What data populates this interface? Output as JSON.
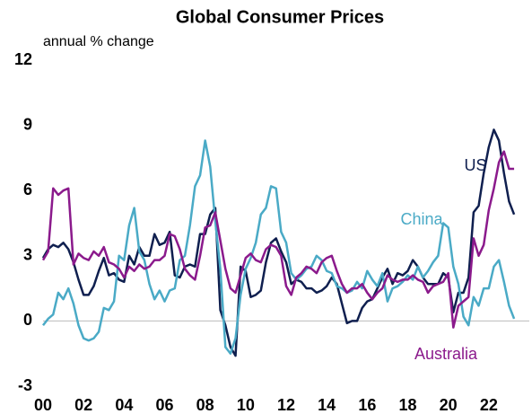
{
  "chart_data": {
    "type": "line",
    "title": "Global Consumer Prices",
    "y_label": "annual % change",
    "x": [
      2000,
      2000.25,
      2000.5,
      2000.75,
      2001,
      2001.25,
      2001.5,
      2001.75,
      2002,
      2002.25,
      2002.5,
      2002.75,
      2003,
      2003.25,
      2003.5,
      2003.75,
      2004,
      2004.25,
      2004.5,
      2004.75,
      2005,
      2005.25,
      2005.5,
      2005.75,
      2006,
      2006.25,
      2006.5,
      2006.75,
      2007,
      2007.25,
      2007.5,
      2007.75,
      2008,
      2008.25,
      2008.5,
      2008.75,
      2009,
      2009.25,
      2009.5,
      2009.75,
      2010,
      2010.25,
      2010.5,
      2010.75,
      2011,
      2011.25,
      2011.5,
      2011.75,
      2012,
      2012.25,
      2012.5,
      2012.75,
      2013,
      2013.25,
      2013.5,
      2013.75,
      2014,
      2014.25,
      2014.5,
      2014.75,
      2015,
      2015.25,
      2015.5,
      2015.75,
      2016,
      2016.25,
      2016.5,
      2016.75,
      2017,
      2017.25,
      2017.5,
      2017.75,
      2018,
      2018.25,
      2018.5,
      2018.75,
      2019,
      2019.25,
      2019.5,
      2019.75,
      2020,
      2020.25,
      2020.5,
      2020.75,
      2021,
      2021.25,
      2021.5,
      2021.75,
      2022,
      2022.25,
      2022.5,
      2022.75,
      2023,
      2023.25
    ],
    "series": [
      {
        "name": "US",
        "color": "#0f1f4f",
        "values": [
          2.9,
          3.3,
          3.5,
          3.4,
          3.6,
          3.3,
          2.7,
          1.9,
          1.2,
          1.2,
          1.6,
          2.3,
          2.9,
          2.1,
          2.2,
          1.9,
          1.8,
          3.0,
          2.6,
          3.4,
          3.0,
          3.0,
          4.0,
          3.5,
          3.6,
          4.1,
          2.1,
          2.0,
          2.5,
          2.6,
          2.5,
          4.0,
          4.0,
          4.9,
          5.2,
          0.5,
          -0.2,
          -1.2,
          -1.6,
          2.5,
          2.3,
          1.1,
          1.2,
          1.4,
          2.7,
          3.6,
          3.8,
          3.2,
          2.7,
          1.7,
          1.9,
          1.8,
          1.5,
          1.5,
          1.3,
          1.4,
          1.6,
          2.0,
          1.7,
          0.8,
          -0.1,
          0.0,
          0.0,
          0.6,
          0.9,
          1.0,
          1.5,
          2.0,
          2.4,
          1.7,
          2.2,
          2.1,
          2.3,
          2.8,
          2.5,
          2.0,
          1.7,
          1.7,
          1.7,
          2.2,
          2.0,
          0.4,
          1.3,
          1.3,
          2.0,
          5.0,
          5.3,
          6.8,
          8.0,
          8.8,
          8.3,
          6.8,
          5.5,
          4.9
        ]
      },
      {
        "name": "China",
        "color": "#4aaac6",
        "values": [
          -0.2,
          0.1,
          0.3,
          1.3,
          1.0,
          1.5,
          0.8,
          -0.2,
          -0.8,
          -0.9,
          -0.8,
          -0.5,
          0.6,
          0.5,
          0.9,
          3.0,
          2.8,
          4.4,
          5.2,
          3.2,
          2.8,
          1.7,
          1.0,
          1.4,
          0.9,
          1.4,
          1.5,
          2.8,
          3.0,
          4.4,
          6.2,
          6.7,
          8.3,
          7.1,
          4.6,
          2.4,
          -1.2,
          -1.5,
          -0.8,
          1.2,
          2.4,
          2.9,
          3.6,
          4.9,
          5.2,
          6.2,
          6.1,
          4.1,
          3.6,
          2.2,
          1.9,
          2.1,
          2.4,
          2.5,
          3.0,
          2.8,
          2.3,
          2.2,
          1.6,
          1.5,
          1.3,
          1.4,
          1.8,
          1.5,
          2.3,
          1.9,
          1.6,
          2.2,
          0.9,
          1.5,
          1.6,
          1.8,
          2.1,
          1.9,
          2.5,
          2.0,
          2.3,
          2.7,
          3.0,
          4.5,
          4.3,
          2.5,
          1.7,
          0.2,
          -0.2,
          1.1,
          0.7,
          1.5,
          1.5,
          2.5,
          2.8,
          1.8,
          0.7,
          0.1
        ]
      },
      {
        "name": "Australia",
        "color": "#8b1a8c",
        "values": [
          2.8,
          3.2,
          6.1,
          5.8,
          6.0,
          6.1,
          2.6,
          3.1,
          2.9,
          2.8,
          3.2,
          3.0,
          3.4,
          2.7,
          2.6,
          2.4,
          2.0,
          2.5,
          2.3,
          2.6,
          2.4,
          2.5,
          2.8,
          2.8,
          3.0,
          4.0,
          3.9,
          3.3,
          2.4,
          2.1,
          1.9,
          3.0,
          4.3,
          4.4,
          5.0,
          3.7,
          2.4,
          1.5,
          1.3,
          2.1,
          2.9,
          3.1,
          2.8,
          2.7,
          3.3,
          3.5,
          3.4,
          3.0,
          1.6,
          1.2,
          2.0,
          2.2,
          2.5,
          2.4,
          2.2,
          2.7,
          2.9,
          3.0,
          2.3,
          1.7,
          1.3,
          1.5,
          1.5,
          1.7,
          1.3,
          1.0,
          1.3,
          1.5,
          2.1,
          1.9,
          1.8,
          1.9,
          1.9,
          2.1,
          1.9,
          1.8,
          1.3,
          1.6,
          1.7,
          1.8,
          2.2,
          -0.3,
          0.7,
          0.9,
          1.1,
          3.8,
          3.0,
          3.5,
          5.1,
          6.1,
          7.3,
          7.8,
          7.0,
          7.0
        ]
      }
    ],
    "xlim": [
      2000,
      2024
    ],
    "xticks": [
      {
        "value": 2000,
        "label": "00"
      },
      {
        "value": 2002,
        "label": "02"
      },
      {
        "value": 2004,
        "label": "04"
      },
      {
        "value": 2006,
        "label": "06"
      },
      {
        "value": 2008,
        "label": "08"
      },
      {
        "value": 2010,
        "label": "10"
      },
      {
        "value": 2012,
        "label": "12"
      },
      {
        "value": 2014,
        "label": "14"
      },
      {
        "value": 2016,
        "label": "16"
      },
      {
        "value": 2018,
        "label": "18"
      },
      {
        "value": 2020,
        "label": "20"
      },
      {
        "value": 2022,
        "label": "22"
      }
    ],
    "ylim": [
      -3,
      12
    ],
    "yticks": [
      -3,
      0,
      3,
      6,
      9,
      12
    ]
  }
}
